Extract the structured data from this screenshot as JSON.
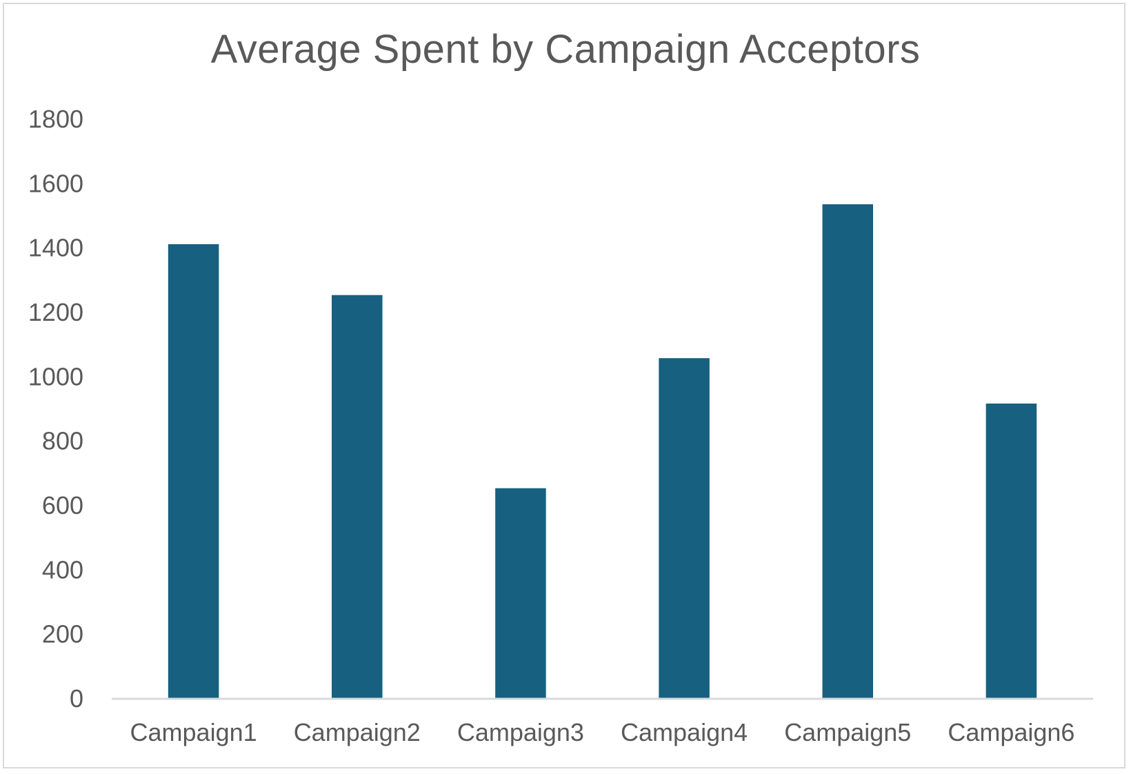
{
  "chart_data": {
    "type": "bar",
    "title": "Average Spent by Campaign Acceptors",
    "xlabel": "",
    "ylabel": "",
    "categories": [
      "Campaign1",
      "Campaign2",
      "Campaign3",
      "Campaign4",
      "Campaign5",
      "Campaign6"
    ],
    "values": [
      1410,
      1252,
      652,
      1056,
      1534,
      915
    ],
    "ylim": [
      0,
      1800
    ],
    "yticks": [
      "0",
      "200",
      "400",
      "600",
      "800",
      "1000",
      "1200",
      "1400",
      "1600",
      "1800"
    ],
    "grid": false,
    "legend": "none",
    "bar_color": "#17607f",
    "axis_color": "#d9d9d9",
    "text_color": "#595959"
  }
}
